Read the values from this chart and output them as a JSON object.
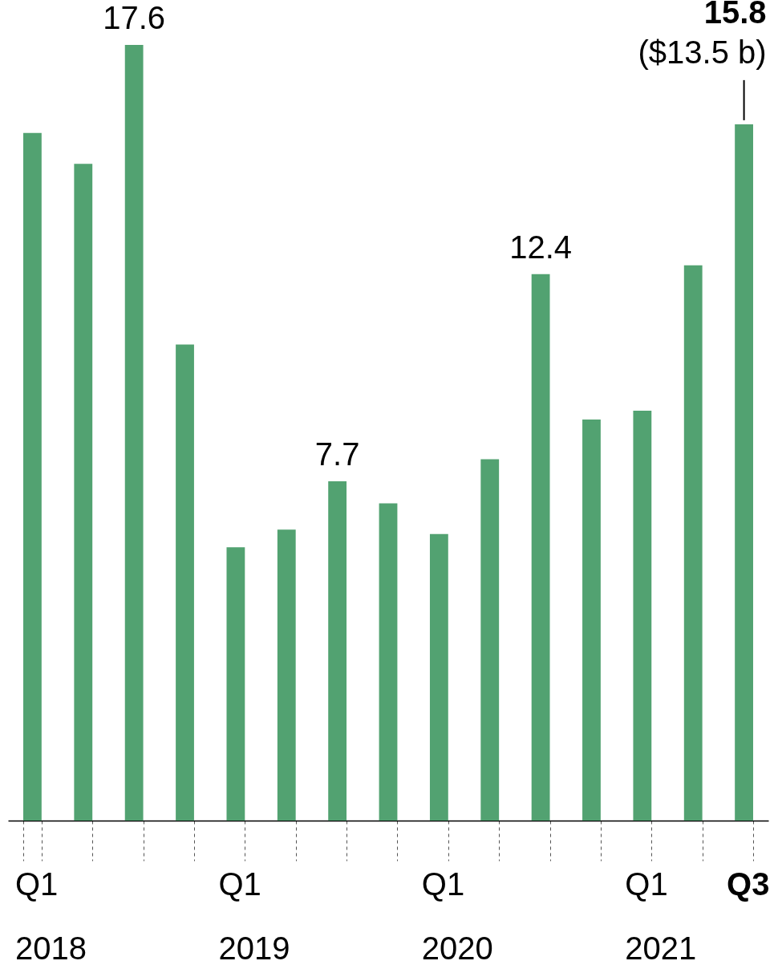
{
  "chart_data": {
    "type": "bar",
    "categories": [
      "Q1\n2018",
      null,
      null,
      null,
      "Q1\n2019",
      null,
      null,
      null,
      "Q1\n2020",
      null,
      null,
      null,
      "Q1\n2021",
      null,
      "Q3"
    ],
    "values": [
      15.6,
      14.9,
      17.6,
      10.8,
      6.2,
      6.6,
      7.7,
      7.2,
      6.5,
      8.2,
      12.4,
      9.1,
      9.3,
      12.6,
      15.8
    ],
    "value_labels": [
      null,
      null,
      "17.6",
      null,
      null,
      null,
      "7.7",
      null,
      null,
      null,
      "12.4",
      null,
      null,
      null,
      "15.8"
    ],
    "color": "#52a271",
    "annotations": [
      {
        "text": "($13.5 b)",
        "x": "Q3",
        "y": 15.8
      }
    ],
    "grid": false
  }
}
